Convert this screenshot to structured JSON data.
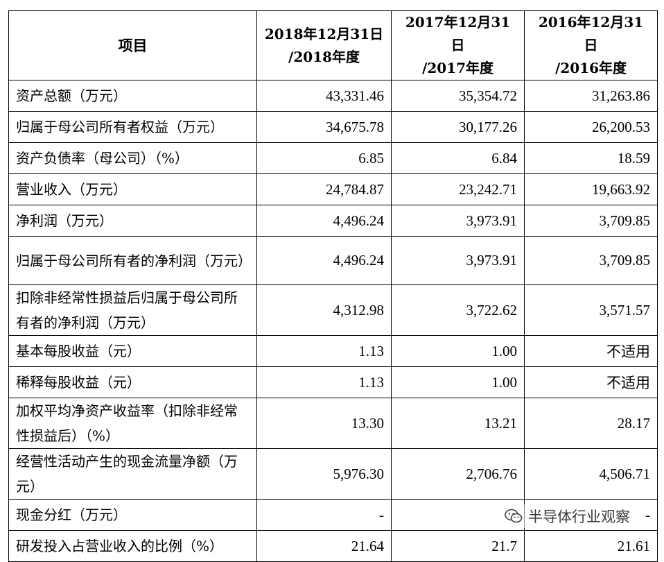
{
  "table": {
    "header": {
      "item": "项目",
      "cols": [
        {
          "line1": "2018年12月31日",
          "line2": "/2018年度"
        },
        {
          "line1": "2017年12月31日",
          "line2": "/2017年度"
        },
        {
          "line1": "2016年12月31日",
          "line2": "/2016年度"
        }
      ]
    },
    "rows": [
      {
        "label": "资产总额（万元）",
        "v": [
          "43,331.46",
          "35,354.72",
          "31,263.86"
        ]
      },
      {
        "label": "归属于母公司所有者权益（万元）",
        "v": [
          "34,675.78",
          "30,177.26",
          "26,200.53"
        ]
      },
      {
        "label": "资产负债率（母公司）（%）",
        "v": [
          "6.85",
          "6.84",
          "18.59"
        ]
      },
      {
        "label": "营业收入（万元）",
        "v": [
          "24,784.87",
          "23,242.71",
          "19,663.92"
        ]
      },
      {
        "label": "净利润（万元）",
        "v": [
          "4,496.24",
          "3,973.91",
          "3,709.85"
        ]
      },
      {
        "label": "归属于母公司所有者的净利润（万元）",
        "v": [
          "4,496.24",
          "3,973.91",
          "3,709.85"
        ]
      },
      {
        "label": "扣除非经常性损益后归属于母公司所有者的净利润（万元）",
        "v": [
          "4,312.98",
          "3,722.62",
          "3,571.57"
        ]
      },
      {
        "label": "基本每股收益（元）",
        "v": [
          "1.13",
          "1.00",
          "不适用"
        ]
      },
      {
        "label": "稀释每股收益（元）",
        "v": [
          "1.13",
          "1.00",
          "不适用"
        ]
      },
      {
        "label": "加权平均净资产收益率（扣除非经常性损益后）（%）",
        "v": [
          "13.30",
          "13.21",
          "28.17"
        ]
      },
      {
        "label": "经营性活动产生的现金流量净额（万元）",
        "v": [
          "5,976.30",
          "2,706.76",
          "4,506.71"
        ]
      },
      {
        "label": "现金分红（万元）",
        "v": [
          "-",
          "-",
          "-"
        ]
      },
      {
        "label": "研发投入占营业收入的比例（%）",
        "v": [
          "21.64",
          "21.7",
          "21.61"
        ]
      }
    ]
  },
  "watermark": {
    "text": "半导体行业观察",
    "icon": "wechat-icon"
  }
}
